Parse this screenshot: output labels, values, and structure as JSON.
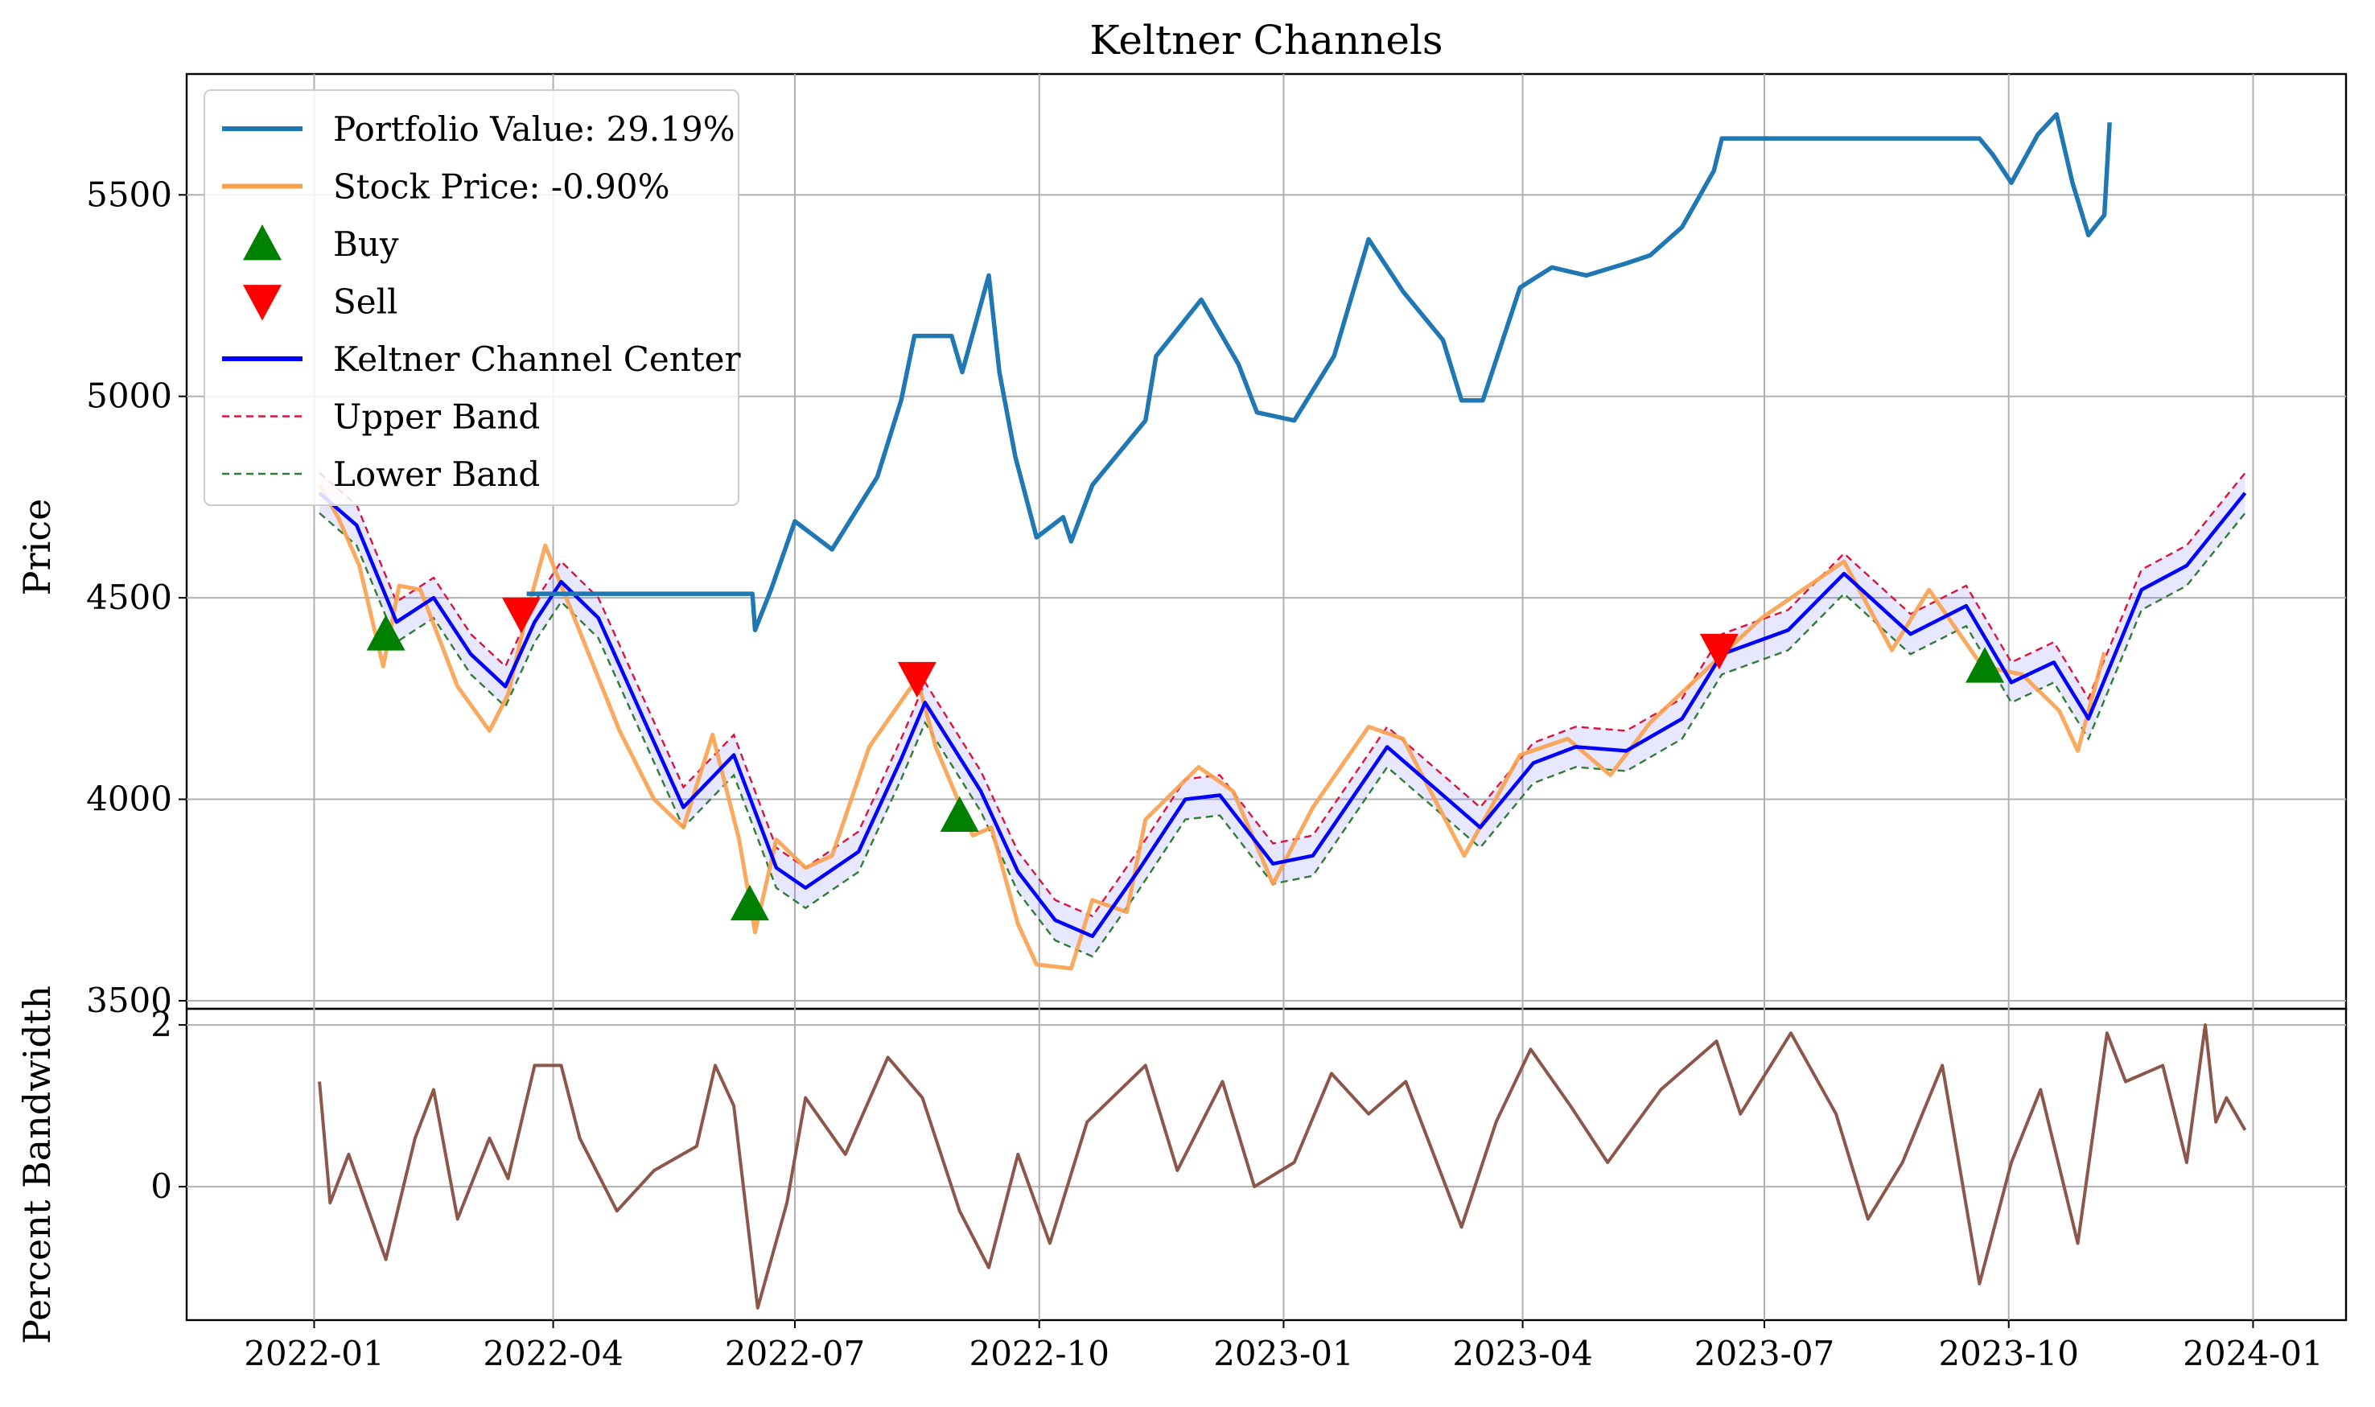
{
  "chart_data": [
    {
      "type": "line",
      "title": "Keltner Channels",
      "xlabel": "",
      "ylabel": "Price",
      "ylim": [
        3480,
        5800
      ],
      "x_ticks": [
        "2022-01",
        "2022-04",
        "2022-07",
        "2022-10",
        "2023-01",
        "2023-04",
        "2023-07",
        "2023-10",
        "2024-01"
      ],
      "y_ticks": [
        3500,
        4000,
        4500,
        5000,
        5500
      ],
      "grid": true,
      "legend_position": "upper-left",
      "legend": [
        {
          "key": "portfolio",
          "label": "Portfolio Value: 29.19%",
          "style": "line",
          "color": "#1f77b4"
        },
        {
          "key": "stock",
          "label": "Stock Price: -0.90%",
          "style": "line",
          "color": "#f9a04c"
        },
        {
          "key": "buy",
          "label": "Buy",
          "style": "triangle-up",
          "color": "#008000"
        },
        {
          "key": "sell",
          "label": "Sell",
          "style": "triangle-down",
          "color": "#ff0000"
        },
        {
          "key": "center",
          "label": "Keltner Channel Center",
          "style": "line",
          "color": "#0000ff"
        },
        {
          "key": "upper",
          "label": "Upper Band",
          "style": "dashed",
          "color": "#dc143c"
        },
        {
          "key": "lower",
          "label": "Lower Band",
          "style": "dashed",
          "color": "#2e7d32"
        }
      ],
      "series": [
        {
          "key": "portfolio",
          "name": "Portfolio Value: 29.19%",
          "points": [
            [
              "2022-03-22",
              4510
            ],
            [
              "2022-06-15",
              4510
            ],
            [
              "2022-06-16",
              4420
            ],
            [
              "2022-06-22",
              4520
            ],
            [
              "2022-07-01",
              4690
            ],
            [
              "2022-07-15",
              4620
            ],
            [
              "2022-08-01",
              4800
            ],
            [
              "2022-08-10",
              4990
            ],
            [
              "2022-08-15",
              5150
            ],
            [
              "2022-08-29",
              5150
            ],
            [
              "2022-09-02",
              5060
            ],
            [
              "2022-09-12",
              5300
            ],
            [
              "2022-09-16",
              5060
            ],
            [
              "2022-09-22",
              4850
            ],
            [
              "2022-09-30",
              4650
            ],
            [
              "2022-10-10",
              4700
            ],
            [
              "2022-10-13",
              4640
            ],
            [
              "2022-10-21",
              4780
            ],
            [
              "2022-11-10",
              4940
            ],
            [
              "2022-11-14",
              5100
            ],
            [
              "2022-12-01",
              5240
            ],
            [
              "2022-12-15",
              5080
            ],
            [
              "2022-12-22",
              4960
            ],
            [
              "2023-01-05",
              4940
            ],
            [
              "2023-01-20",
              5100
            ],
            [
              "2023-02-02",
              5390
            ],
            [
              "2023-02-15",
              5260
            ],
            [
              "2023-03-02",
              5140
            ],
            [
              "2023-03-09",
              4990
            ],
            [
              "2023-03-17",
              4990
            ],
            [
              "2023-03-31",
              5270
            ],
            [
              "2023-04-12",
              5320
            ],
            [
              "2023-04-25",
              5300
            ],
            [
              "2023-05-10",
              5330
            ],
            [
              "2023-05-19",
              5350
            ],
            [
              "2023-05-31",
              5420
            ],
            [
              "2023-06-12",
              5560
            ],
            [
              "2023-06-15",
              5640
            ],
            [
              "2023-09-20",
              5640
            ],
            [
              "2023-09-25",
              5600
            ],
            [
              "2023-10-02",
              5530
            ],
            [
              "2023-10-12",
              5650
            ],
            [
              "2023-10-19",
              5700
            ],
            [
              "2023-10-25",
              5530
            ],
            [
              "2023-10-31",
              5400
            ],
            [
              "2023-11-06",
              5450
            ],
            [
              "2023-11-08",
              5680
            ]
          ]
        },
        {
          "key": "stock",
          "name": "Stock Price: -0.90%",
          "points": [
            [
              "2022-01-03",
              4780
            ],
            [
              "2022-01-10",
              4700
            ],
            [
              "2022-01-18",
              4580
            ],
            [
              "2022-01-27",
              4330
            ],
            [
              "2022-02-02",
              4530
            ],
            [
              "2022-02-10",
              4520
            ],
            [
              "2022-02-17",
              4400
            ],
            [
              "2022-02-24",
              4280
            ],
            [
              "2022-03-08",
              4170
            ],
            [
              "2022-03-15",
              4260
            ],
            [
              "2022-03-22",
              4460
            ],
            [
              "2022-03-29",
              4630
            ],
            [
              "2022-04-12",
              4400
            ],
            [
              "2022-04-26",
              4170
            ],
            [
              "2022-05-09",
              4000
            ],
            [
              "2022-05-20",
              3930
            ],
            [
              "2022-05-31",
              4160
            ],
            [
              "2022-06-10",
              3900
            ],
            [
              "2022-06-16",
              3670
            ],
            [
              "2022-06-24",
              3900
            ],
            [
              "2022-07-05",
              3830
            ],
            [
              "2022-07-15",
              3860
            ],
            [
              "2022-07-29",
              4130
            ],
            [
              "2022-08-16",
              4300
            ],
            [
              "2022-08-23",
              4130
            ],
            [
              "2022-09-06",
              3910
            ],
            [
              "2022-09-13",
              3930
            ],
            [
              "2022-09-23",
              3690
            ],
            [
              "2022-09-30",
              3590
            ],
            [
              "2022-10-13",
              3580
            ],
            [
              "2022-10-21",
              3750
            ],
            [
              "2022-11-03",
              3720
            ],
            [
              "2022-11-10",
              3950
            ],
            [
              "2022-11-30",
              4080
            ],
            [
              "2022-12-13",
              4020
            ],
            [
              "2022-12-28",
              3790
            ],
            [
              "2023-01-12",
              3980
            ],
            [
              "2023-02-02",
              4180
            ],
            [
              "2023-02-15",
              4150
            ],
            [
              "2023-03-10",
              3860
            ],
            [
              "2023-03-31",
              4110
            ],
            [
              "2023-04-18",
              4150
            ],
            [
              "2023-05-04",
              4060
            ],
            [
              "2023-05-19",
              4190
            ],
            [
              "2023-06-12",
              4340
            ],
            [
              "2023-06-30",
              4450
            ],
            [
              "2023-07-31",
              4590
            ],
            [
              "2023-08-18",
              4370
            ],
            [
              "2023-09-01",
              4520
            ],
            [
              "2023-09-21",
              4330
            ],
            [
              "2023-10-06",
              4310
            ],
            [
              "2023-10-20",
              4220
            ],
            [
              "2023-10-27",
              4120
            ],
            [
              "2023-11-06",
              4365
            ]
          ]
        },
        {
          "key": "center",
          "name": "Keltner Channel Center",
          "points": [
            [
              "2022-01-03",
              4760
            ],
            [
              "2022-01-17",
              4680
            ],
            [
              "2022-02-01",
              4440
            ],
            [
              "2022-02-15",
              4500
            ],
            [
              "2022-03-01",
              4360
            ],
            [
              "2022-03-14",
              4280
            ],
            [
              "2022-03-25",
              4440
            ],
            [
              "2022-04-04",
              4540
            ],
            [
              "2022-04-18",
              4450
            ],
            [
              "2022-05-05",
              4200
            ],
            [
              "2022-05-20",
              3980
            ],
            [
              "2022-06-08",
              4110
            ],
            [
              "2022-06-24",
              3830
            ],
            [
              "2022-07-05",
              3780
            ],
            [
              "2022-07-25",
              3870
            ],
            [
              "2022-08-10",
              4100
            ],
            [
              "2022-08-19",
              4240
            ],
            [
              "2022-09-09",
              4020
            ],
            [
              "2022-09-23",
              3820
            ],
            [
              "2022-10-07",
              3700
            ],
            [
              "2022-10-21",
              3660
            ],
            [
              "2022-11-07",
              3820
            ],
            [
              "2022-11-25",
              4000
            ],
            [
              "2022-12-08",
              4010
            ],
            [
              "2022-12-28",
              3840
            ],
            [
              "2023-01-12",
              3860
            ],
            [
              "2023-02-09",
              4130
            ],
            [
              "2023-02-23",
              4050
            ],
            [
              "2023-03-16",
              3930
            ],
            [
              "2023-04-05",
              4090
            ],
            [
              "2023-04-21",
              4130
            ],
            [
              "2023-05-10",
              4120
            ],
            [
              "2023-05-31",
              4200
            ],
            [
              "2023-06-15",
              4360
            ],
            [
              "2023-07-10",
              4420
            ],
            [
              "2023-07-31",
              4560
            ],
            [
              "2023-08-25",
              4410
            ],
            [
              "2023-09-15",
              4480
            ],
            [
              "2023-10-02",
              4290
            ],
            [
              "2023-10-18",
              4340
            ],
            [
              "2023-10-31",
              4200
            ],
            [
              "2023-11-20",
              4520
            ],
            [
              "2023-12-07",
              4580
            ],
            [
              "2023-12-29",
              4760
            ]
          ]
        },
        {
          "key": "buy",
          "name": "Buy",
          "points": [
            [
              "2022-01-28",
              4410
            ],
            [
              "2022-06-14",
              3740
            ],
            [
              "2022-09-01",
              3960
            ],
            [
              "2023-09-22",
              4330
            ]
          ]
        },
        {
          "key": "sell",
          "name": "Sell",
          "points": [
            [
              "2022-03-20",
              4460
            ],
            [
              "2022-08-16",
              4300
            ],
            [
              "2023-06-14",
              4370
            ]
          ]
        }
      ],
      "band_offset": 50
    },
    {
      "type": "line",
      "title": "",
      "xlabel": "",
      "ylabel": "Percent Bandwidth",
      "ylim": [
        -1.65,
        2.2
      ],
      "y_ticks": [
        0,
        2
      ],
      "grid": true,
      "series": [
        {
          "key": "pb",
          "name": "Percent Bandwidth",
          "color": "#8c564b",
          "values_note": "",
          "points": [
            [
              "2022-01-03",
              1.3
            ],
            [
              "2022-01-07",
              -0.2
            ],
            [
              "2022-01-14",
              0.4
            ],
            [
              "2022-01-28",
              -0.9
            ],
            [
              "2022-02-08",
              0.6
            ],
            [
              "2022-02-15",
              1.2
            ],
            [
              "2022-02-24",
              -0.4
            ],
            [
              "2022-03-08",
              0.6
            ],
            [
              "2022-03-15",
              0.1
            ],
            [
              "2022-03-25",
              1.5
            ],
            [
              "2022-04-04",
              1.5
            ],
            [
              "2022-04-11",
              0.6
            ],
            [
              "2022-04-25",
              -0.3
            ],
            [
              "2022-05-09",
              0.2
            ],
            [
              "2022-05-25",
              0.5
            ],
            [
              "2022-06-01",
              1.5
            ],
            [
              "2022-06-08",
              1.0
            ],
            [
              "2022-06-17",
              -1.5
            ],
            [
              "2022-06-28",
              -0.2
            ],
            [
              "2022-07-05",
              1.1
            ],
            [
              "2022-07-20",
              0.4
            ],
            [
              "2022-08-05",
              1.6
            ],
            [
              "2022-08-18",
              1.1
            ],
            [
              "2022-09-01",
              -0.3
            ],
            [
              "2022-09-12",
              -1.0
            ],
            [
              "2022-09-23",
              0.4
            ],
            [
              "2022-10-05",
              -0.7
            ],
            [
              "2022-10-19",
              0.8
            ],
            [
              "2022-11-10",
              1.5
            ],
            [
              "2022-11-22",
              0.2
            ],
            [
              "2022-12-09",
              1.3
            ],
            [
              "2022-12-21",
              0.0
            ],
            [
              "2023-01-05",
              0.3
            ],
            [
              "2023-01-19",
              1.4
            ],
            [
              "2023-02-02",
              0.9
            ],
            [
              "2023-02-16",
              1.3
            ],
            [
              "2023-03-09",
              -0.5
            ],
            [
              "2023-03-22",
              0.8
            ],
            [
              "2023-04-04",
              1.7
            ],
            [
              "2023-04-19",
              1.0
            ],
            [
              "2023-05-03",
              0.3
            ],
            [
              "2023-05-23",
              1.2
            ],
            [
              "2023-06-13",
              1.8
            ],
            [
              "2023-06-22",
              0.9
            ],
            [
              "2023-07-11",
              1.9
            ],
            [
              "2023-07-28",
              0.9
            ],
            [
              "2023-08-09",
              -0.4
            ],
            [
              "2023-08-22",
              0.3
            ],
            [
              "2023-09-06",
              1.5
            ],
            [
              "2023-09-20",
              -1.2
            ],
            [
              "2023-10-02",
              0.3
            ],
            [
              "2023-10-13",
              1.2
            ],
            [
              "2023-10-27",
              -0.7
            ],
            [
              "2023-11-07",
              1.9
            ],
            [
              "2023-11-14",
              1.3
            ],
            [
              "2023-11-28",
              1.5
            ],
            [
              "2023-12-07",
              0.3
            ],
            [
              "2023-12-14",
              2.0
            ],
            [
              "2023-12-18",
              0.8
            ],
            [
              "2023-12-22",
              1.1
            ],
            [
              "2023-12-29",
              0.7
            ]
          ]
        }
      ]
    }
  ]
}
